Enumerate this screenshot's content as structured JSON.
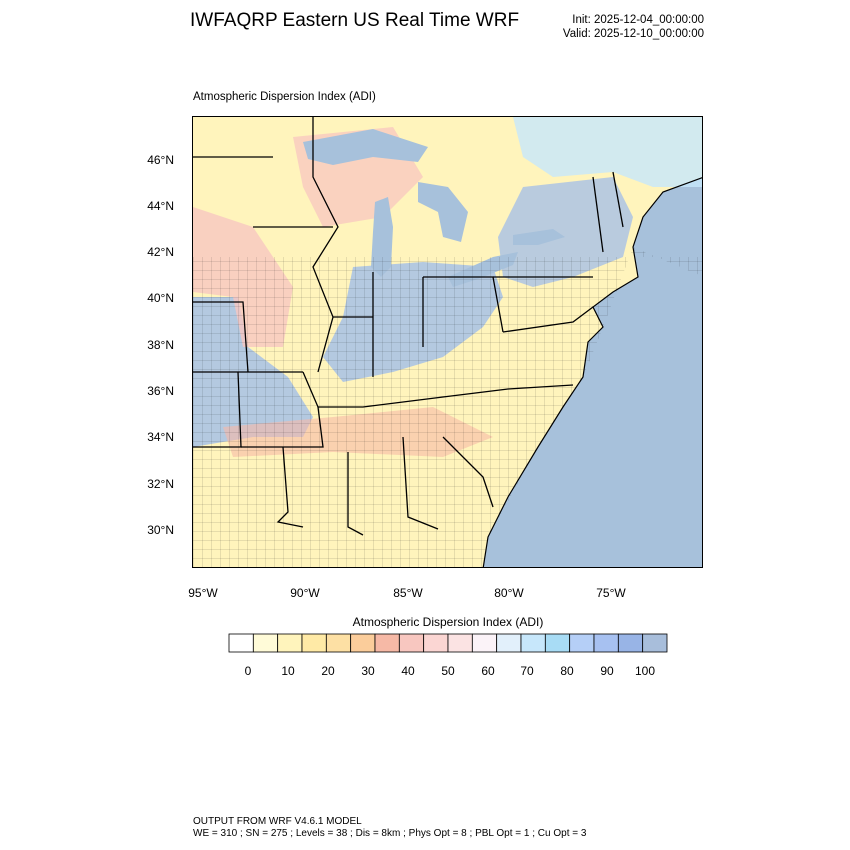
{
  "header": {
    "title": "IWFAQRP Eastern US Real Time WRF",
    "init": "Init: 2025-12-04_00:00:00",
    "valid": "Valid: 2025-12-10_00:00:00"
  },
  "plot": {
    "title": "Atmospheric Dispersion Index   (ADI)",
    "lat_ticks": [
      "46°N",
      "44°N",
      "42°N",
      "40°N",
      "38°N",
      "36°N",
      "34°N",
      "32°N",
      "30°N"
    ],
    "lon_ticks": [
      "95°W",
      "90°W",
      "85°W",
      "80°W",
      "75°W"
    ]
  },
  "colorbar": {
    "title": "Atmospheric Dispersion Index  (ADI)",
    "labels": [
      "0",
      "10",
      "20",
      "30",
      "40",
      "50",
      "60",
      "70",
      "80",
      "90",
      "100"
    ],
    "colors": [
      "#ffffff",
      "#fffbd8",
      "#fff4bc",
      "#ffeaa6",
      "#fde0a4",
      "#fbcd9b",
      "#f6b9a6",
      "#f8c7c0",
      "#fbd6d3",
      "#fbe3e3",
      "#fbf3f8",
      "#e2f0fb",
      "#c7e7fb",
      "#a8dcf5",
      "#b5cff7",
      "#a7c1f1",
      "#98b4e6",
      "#a8bedb"
    ]
  },
  "map": {
    "ocean_color": "#a7c1db",
    "lake_color": "#a7c1db",
    "land_base_color": "#fff4bc"
  },
  "footer": {
    "line1": "OUTPUT FROM WRF V4.6.1 MODEL",
    "line2": "WE = 310 ; SN = 275 ; Levels = 38 ; Dis = 8km ; Phys Opt = 8 ; PBL Opt = 1 ; Cu Opt = 3"
  }
}
